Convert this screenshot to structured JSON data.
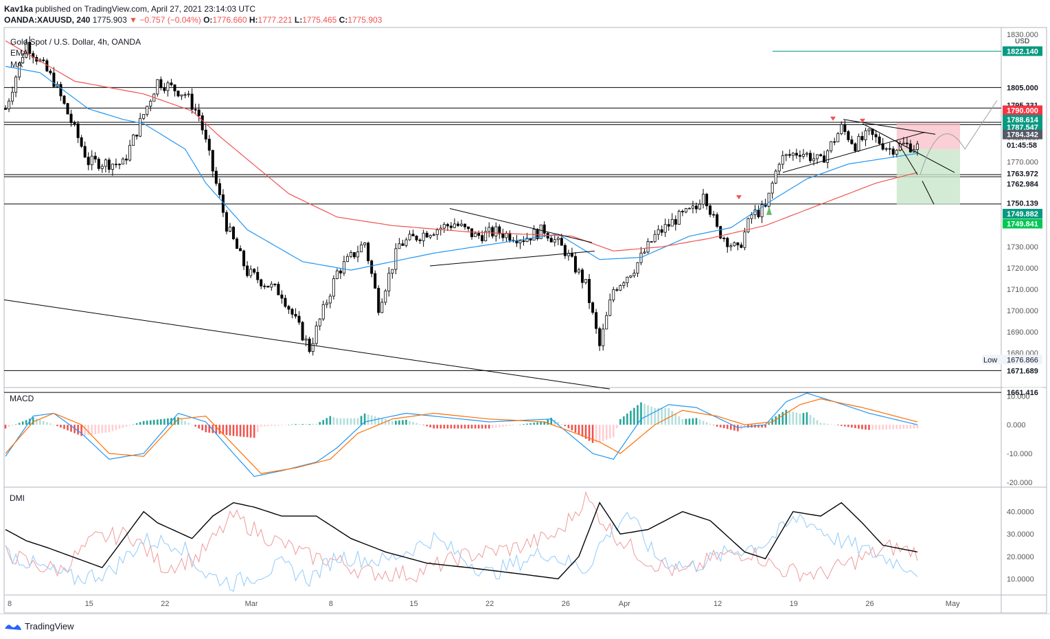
{
  "header": {
    "author": "Kav1ka",
    "published_text": "published on TradingView.com, April 27, 2021 23:14:03 UTC",
    "symbol": "OANDA:XAUUSD, 240",
    "last": "1775.903",
    "change": "−0.757 (−0.04%)",
    "o_label": "O:",
    "o": "1776.660",
    "h_label": "H:",
    "h": "1777.221",
    "l_label": "L:",
    "l": "1775.465",
    "c_label": "C:",
    "c": "1775.903"
  },
  "legend": {
    "title": "Gold Spot / U.S. Dollar, 4h, OANDA",
    "ind1": "EMA",
    "ind2": "MA"
  },
  "footer": {
    "brand": "TradingView"
  },
  "colors": {
    "up": "#000000",
    "ema": "#2196f3",
    "ma": "#ef5350",
    "macd": "#2196f3",
    "signal": "#ff6d00",
    "hist_pos": "#26a69a",
    "hist_neg": "#ef5350",
    "adx": "#000000",
    "di_plus": "#90caf9",
    "di_minus": "#ef9a9a",
    "tag_red": "#f23645",
    "tag_teal": "#089981",
    "tag_green": "#00c853",
    "tag_dark": "#131722"
  },
  "chart_data": [
    {
      "type": "candlestick",
      "title": "Gold Spot / U.S. Dollar, 4h, OANDA",
      "currency": "USD",
      "ylim": [
        1665,
        1832
      ],
      "y_ticks": [
        "1830.000",
        "1780.000",
        "1770.000",
        "1740.000",
        "1730.000",
        "1720.000",
        "1710.000",
        "1700.000",
        "1690.000",
        "1680.000"
      ],
      "x_ticks": [
        "8",
        "15",
        "22",
        "Mar",
        "8",
        "15",
        "22",
        "26",
        "Apr",
        "12",
        "19",
        "26",
        "May"
      ],
      "series_anchor_close": [
        [
          0,
          1795
        ],
        [
          6,
          1826
        ],
        [
          14,
          1808
        ],
        [
          24,
          1770
        ],
        [
          34,
          1769
        ],
        [
          44,
          1808
        ],
        [
          52,
          1802
        ],
        [
          56,
          1792
        ],
        [
          64,
          1740
        ],
        [
          70,
          1718
        ],
        [
          80,
          1708
        ],
        [
          88,
          1682
        ],
        [
          96,
          1718
        ],
        [
          104,
          1732
        ],
        [
          108,
          1702
        ],
        [
          114,
          1731
        ],
        [
          122,
          1737
        ],
        [
          130,
          1741
        ],
        [
          136,
          1735
        ],
        [
          142,
          1737
        ],
        [
          150,
          1734
        ],
        [
          156,
          1738
        ],
        [
          162,
          1728
        ],
        [
          168,
          1712
        ],
        [
          172,
          1683
        ],
        [
          176,
          1710
        ],
        [
          182,
          1720
        ],
        [
          188,
          1735
        ],
        [
          194,
          1743
        ],
        [
          200,
          1748
        ],
        [
          202,
          1757
        ],
        [
          206,
          1738
        ],
        [
          212,
          1728
        ],
        [
          216,
          1745
        ],
        [
          220,
          1748
        ],
        [
          224,
          1771
        ],
        [
          230,
          1775
        ],
        [
          236,
          1770
        ],
        [
          242,
          1786
        ],
        [
          246,
          1778
        ],
        [
          250,
          1783
        ],
        [
          256,
          1776
        ],
        [
          260,
          1778
        ],
        [
          264,
          1777
        ]
      ],
      "ema_anchor": [
        [
          0,
          1815
        ],
        [
          10,
          1812
        ],
        [
          24,
          1795
        ],
        [
          34,
          1790
        ],
        [
          40,
          1788
        ],
        [
          52,
          1776
        ],
        [
          58,
          1760
        ],
        [
          70,
          1738
        ],
        [
          86,
          1723
        ],
        [
          100,
          1719
        ],
        [
          124,
          1727
        ],
        [
          160,
          1736
        ],
        [
          172,
          1724
        ],
        [
          184,
          1725
        ],
        [
          198,
          1735
        ],
        [
          210,
          1739
        ],
        [
          222,
          1752
        ],
        [
          232,
          1762
        ],
        [
          244,
          1769
        ],
        [
          264,
          1774
        ]
      ],
      "ma_anchor": [
        [
          0,
          1827
        ],
        [
          20,
          1808
        ],
        [
          40,
          1802
        ],
        [
          54,
          1794
        ],
        [
          62,
          1782
        ],
        [
          82,
          1755
        ],
        [
          96,
          1744
        ],
        [
          112,
          1740
        ],
        [
          134,
          1737
        ],
        [
          164,
          1735
        ],
        [
          176,
          1728
        ],
        [
          190,
          1730
        ],
        [
          204,
          1734
        ],
        [
          220,
          1740
        ],
        [
          236,
          1750
        ],
        [
          252,
          1760
        ],
        [
          264,
          1765
        ]
      ],
      "price_tags": [
        {
          "value": "1822.140",
          "color": "#089981"
        },
        {
          "value": "1805.000",
          "color": "#131722"
        },
        {
          "value": "1795.331",
          "color": "#131722"
        },
        {
          "value": "1790.000",
          "color": "#f23645"
        },
        {
          "value": "1788.614",
          "color": "#089981"
        },
        {
          "value": "1787.547",
          "color": "#089981"
        },
        {
          "value": "1784.342",
          "color": "#555a66"
        },
        {
          "value": "01:45:58",
          "color": "#131722"
        },
        {
          "value": "1763.972",
          "color": "#131722"
        },
        {
          "value": "1762.984",
          "color": "#131722"
        },
        {
          "value": "1750.139",
          "color": "#131722"
        },
        {
          "value": "1749.882",
          "color": "#089981"
        },
        {
          "value": "1749.841",
          "color": "#00c853"
        },
        {
          "value": "1671.689",
          "color": "#131722"
        },
        {
          "value": "1661.416",
          "color": "#131722"
        }
      ],
      "low_label": "Low",
      "low_value": "1676.866",
      "horizontal_levels": [
        1822.14,
        1805.0,
        1795.331,
        1788.614,
        1787.547,
        1764.0,
        1762.984,
        1750.139,
        1671.689,
        1661.416
      ]
    },
    {
      "type": "line",
      "title": "MACD",
      "ylim": [
        -21,
        12
      ],
      "y_ticks": [
        "10.000",
        "0.000",
        "-10.000",
        "-20.000"
      ],
      "macd_anchor": [
        [
          0,
          -11
        ],
        [
          8,
          3
        ],
        [
          14,
          4
        ],
        [
          22,
          -3
        ],
        [
          30,
          -12
        ],
        [
          40,
          -10
        ],
        [
          50,
          4
        ],
        [
          58,
          1
        ],
        [
          66,
          -10
        ],
        [
          72,
          -18
        ],
        [
          80,
          -16
        ],
        [
          90,
          -13
        ],
        [
          96,
          -8
        ],
        [
          104,
          1
        ],
        [
          116,
          4
        ],
        [
          140,
          1
        ],
        [
          158,
          2
        ],
        [
          170,
          -10
        ],
        [
          176,
          -12
        ],
        [
          184,
          2
        ],
        [
          192,
          7
        ],
        [
          200,
          6
        ],
        [
          212,
          -1
        ],
        [
          220,
          0
        ],
        [
          226,
          8
        ],
        [
          232,
          11
        ],
        [
          240,
          8
        ],
        [
          250,
          4
        ],
        [
          264,
          0
        ]
      ],
      "signal_anchor": [
        [
          0,
          -10
        ],
        [
          8,
          1
        ],
        [
          14,
          4
        ],
        [
          22,
          0
        ],
        [
          30,
          -10
        ],
        [
          40,
          -11
        ],
        [
          50,
          2
        ],
        [
          58,
          3
        ],
        [
          66,
          -7
        ],
        [
          74,
          -17
        ],
        [
          84,
          -15
        ],
        [
          94,
          -12
        ],
        [
          102,
          -3
        ],
        [
          112,
          2
        ],
        [
          124,
          4
        ],
        [
          140,
          2
        ],
        [
          156,
          1
        ],
        [
          172,
          -6
        ],
        [
          178,
          -10
        ],
        [
          188,
          0
        ],
        [
          196,
          5
        ],
        [
          206,
          3
        ],
        [
          214,
          0
        ],
        [
          222,
          1
        ],
        [
          230,
          7
        ],
        [
          236,
          9
        ],
        [
          248,
          6
        ],
        [
          264,
          1
        ]
      ]
    },
    {
      "type": "line",
      "title": "DMI",
      "ylim": [
        4,
        50
      ],
      "y_ticks": [
        "40.0000",
        "30.0000",
        "20.0000",
        "10.0000"
      ],
      "adx_anchor": [
        [
          0,
          32
        ],
        [
          6,
          27
        ],
        [
          12,
          24
        ],
        [
          28,
          15
        ],
        [
          40,
          40
        ],
        [
          44,
          35
        ],
        [
          54,
          28
        ],
        [
          60,
          38
        ],
        [
          66,
          44
        ],
        [
          72,
          42
        ],
        [
          80,
          38
        ],
        [
          90,
          38
        ],
        [
          100,
          28
        ],
        [
          110,
          22
        ],
        [
          122,
          17
        ],
        [
          134,
          15
        ],
        [
          150,
          12
        ],
        [
          160,
          10
        ],
        [
          166,
          20
        ],
        [
          172,
          44
        ],
        [
          178,
          30
        ],
        [
          186,
          32
        ],
        [
          196,
          40
        ],
        [
          204,
          36
        ],
        [
          214,
          22
        ],
        [
          220,
          19
        ],
        [
          228,
          40
        ],
        [
          236,
          38
        ],
        [
          242,
          44
        ],
        [
          248,
          35
        ],
        [
          254,
          25
        ],
        [
          264,
          22
        ]
      ],
      "di_plus_anchor": [
        [
          0,
          22
        ],
        [
          10,
          15
        ],
        [
          20,
          10
        ],
        [
          30,
          13
        ],
        [
          40,
          27
        ],
        [
          50,
          26
        ],
        [
          58,
          12
        ],
        [
          66,
          8
        ],
        [
          80,
          16
        ],
        [
          88,
          10
        ],
        [
          96,
          20
        ],
        [
          110,
          18
        ],
        [
          124,
          28
        ],
        [
          140,
          12
        ],
        [
          156,
          22
        ],
        [
          168,
          14
        ],
        [
          172,
          25
        ],
        [
          180,
          40
        ],
        [
          188,
          20
        ],
        [
          198,
          15
        ],
        [
          210,
          22
        ],
        [
          220,
          26
        ],
        [
          230,
          38
        ],
        [
          240,
          28
        ],
        [
          250,
          22
        ],
        [
          264,
          14
        ]
      ],
      "di_minus_anchor": [
        [
          0,
          22
        ],
        [
          8,
          16
        ],
        [
          16,
          14
        ],
        [
          26,
          28
        ],
        [
          36,
          30
        ],
        [
          46,
          15
        ],
        [
          56,
          20
        ],
        [
          66,
          38
        ],
        [
          74,
          30
        ],
        [
          88,
          20
        ],
        [
          96,
          18
        ],
        [
          104,
          13
        ],
        [
          118,
          12
        ],
        [
          132,
          20
        ],
        [
          148,
          24
        ],
        [
          160,
          30
        ],
        [
          168,
          46
        ],
        [
          176,
          30
        ],
        [
          186,
          18
        ],
        [
          196,
          12
        ],
        [
          206,
          20
        ],
        [
          216,
          22
        ],
        [
          224,
          14
        ],
        [
          236,
          12
        ],
        [
          246,
          18
        ],
        [
          256,
          24
        ],
        [
          264,
          22
        ]
      ]
    }
  ]
}
